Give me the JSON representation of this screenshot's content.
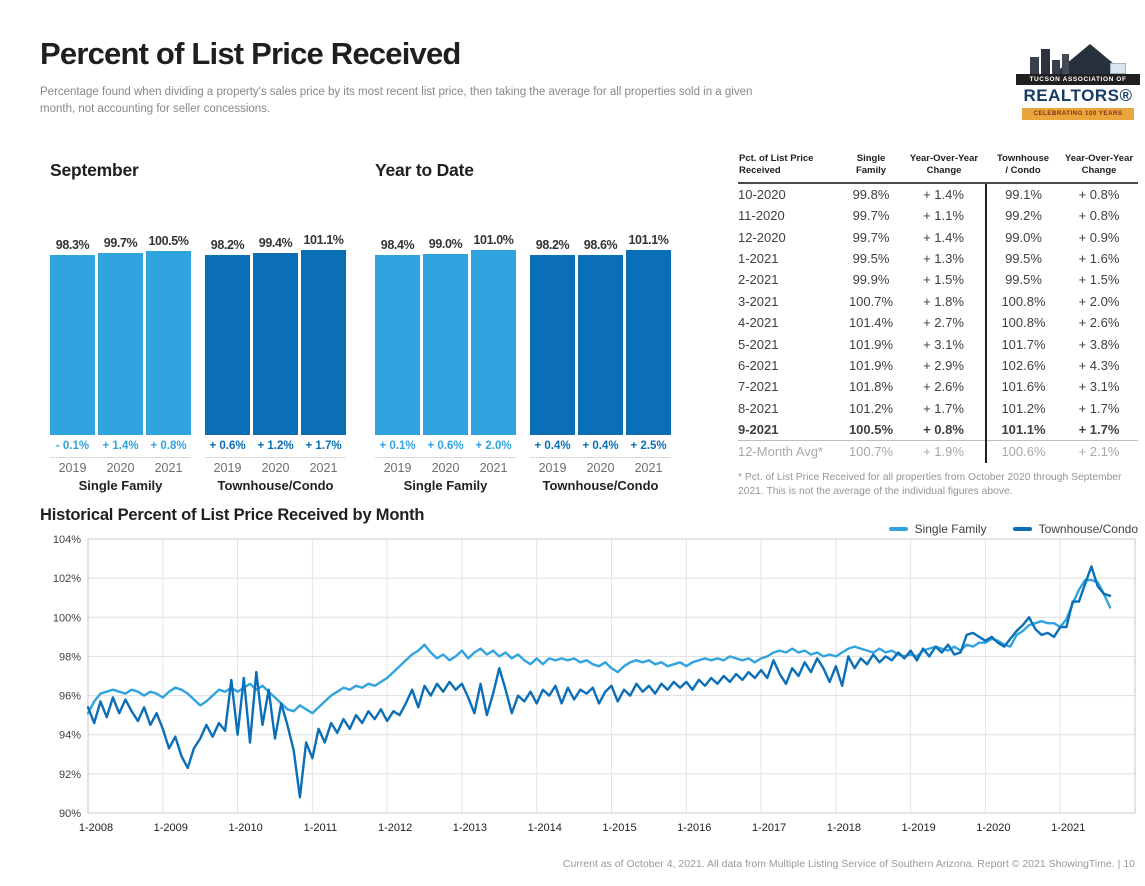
{
  "header": {
    "title": "Percent of List Price Received",
    "subtitle": "Percentage found when dividing a property's sales price by its most recent list price, then taking the average for all properties sold in a given month, not accounting for seller concessions.",
    "logo": {
      "line1": "TUCSON ASSOCIATION OF",
      "line2": "REALTORS®",
      "line3": "CELEBRATING 100 YEARS"
    }
  },
  "colors": {
    "single_family": "#31a3de",
    "townhouse_condo": "#0a6fb7"
  },
  "chart_data": [
    {
      "id": "september",
      "type": "bar",
      "title": "September",
      "categories": [
        "2019",
        "2020",
        "2021"
      ],
      "series": [
        {
          "name": "Single Family",
          "color": "#31a3de",
          "values": [
            98.3,
            99.7,
            100.5
          ],
          "labels": [
            "98.3%",
            "99.7%",
            "100.5%"
          ],
          "changes": [
            "- 0.1%",
            "+ 1.4%",
            "+ 0.8%"
          ]
        },
        {
          "name": "Townhouse/Condo",
          "color": "#0a6fb7",
          "values": [
            98.2,
            99.4,
            101.1
          ],
          "labels": [
            "98.2%",
            "99.4%",
            "101.1%"
          ],
          "changes": [
            "+ 0.6%",
            "+ 1.2%",
            "+ 1.7%"
          ]
        }
      ]
    },
    {
      "id": "ytd",
      "type": "bar",
      "title": "Year to Date",
      "categories": [
        "2019",
        "2020",
        "2021"
      ],
      "series": [
        {
          "name": "Single Family",
          "color": "#31a3de",
          "values": [
            98.4,
            99.0,
            101.0
          ],
          "labels": [
            "98.4%",
            "99.0%",
            "101.0%"
          ],
          "changes": [
            "+ 0.1%",
            "+ 0.6%",
            "+ 2.0%"
          ]
        },
        {
          "name": "Townhouse/Condo",
          "color": "#0a6fb7",
          "values": [
            98.2,
            98.6,
            101.1
          ],
          "labels": [
            "98.2%",
            "98.6%",
            "101.1%"
          ],
          "changes": [
            "+ 0.4%",
            "+ 0.4%",
            "+ 2.5%"
          ]
        }
      ]
    },
    {
      "id": "historical",
      "type": "line",
      "title": "Historical Percent of List Price Received by Month",
      "x_start": "1-2008",
      "x_end": "9-2021",
      "frequency": "monthly",
      "xticks": [
        "1-2008",
        "1-2009",
        "1-2010",
        "1-2011",
        "1-2012",
        "1-2013",
        "1-2014",
        "1-2015",
        "1-2016",
        "1-2017",
        "1-2018",
        "1-2019",
        "1-2020",
        "1-2021"
      ],
      "yticks": [
        "104%",
        "102%",
        "100%",
        "98%",
        "96%",
        "94%",
        "92%",
        "90%"
      ],
      "ylim": [
        90,
        104
      ],
      "grid": true,
      "legend_position": "top-right",
      "series": [
        {
          "name": "Single Family",
          "color": "#31a3de",
          "values": [
            95.1,
            95.7,
            96.1,
            96.2,
            96.3,
            96.2,
            96.1,
            96.3,
            96.2,
            96.0,
            96.2,
            96.1,
            95.9,
            96.2,
            96.4,
            96.3,
            96.1,
            95.8,
            95.5,
            95.7,
            96.0,
            96.3,
            96.2,
            96.4,
            96.2,
            96.4,
            96.6,
            96.3,
            96.5,
            96.2,
            95.9,
            95.6,
            95.3,
            95.2,
            95.5,
            95.3,
            95.1,
            95.4,
            95.7,
            96.0,
            96.2,
            96.4,
            96.3,
            96.5,
            96.4,
            96.6,
            96.5,
            96.7,
            96.9,
            97.2,
            97.5,
            97.8,
            98.1,
            98.3,
            98.6,
            98.2,
            97.9,
            98.1,
            97.8,
            98.0,
            98.3,
            97.9,
            98.2,
            98.4,
            98.1,
            98.3,
            98.0,
            98.2,
            97.9,
            98.1,
            97.8,
            97.6,
            97.9,
            97.6,
            97.9,
            97.8,
            97.9,
            97.8,
            97.9,
            97.7,
            97.8,
            97.6,
            97.5,
            97.7,
            97.4,
            97.2,
            97.5,
            97.7,
            97.8,
            97.7,
            97.8,
            97.6,
            97.7,
            97.5,
            97.6,
            97.7,
            97.5,
            97.7,
            97.8,
            97.9,
            97.8,
            97.9,
            97.8,
            98.0,
            97.9,
            97.8,
            97.9,
            97.7,
            97.9,
            98.0,
            98.2,
            98.3,
            98.2,
            98.4,
            98.2,
            98.3,
            98.1,
            98.2,
            98.0,
            98.1,
            98.0,
            98.2,
            98.4,
            98.5,
            98.4,
            98.3,
            98.2,
            98.4,
            98.2,
            98.3,
            98.1,
            98.0,
            98.1,
            98.0,
            98.3,
            98.4,
            98.5,
            98.4,
            98.3,
            98.5,
            98.3,
            98.6,
            98.5,
            98.7,
            98.7,
            98.9,
            98.8,
            98.6,
            98.5,
            99.1,
            99.3,
            99.6,
            99.7,
            99.8,
            99.7,
            99.7,
            99.5,
            99.9,
            100.7,
            101.4,
            101.9,
            101.9,
            101.8,
            101.2,
            100.5
          ]
        },
        {
          "name": "Townhouse/Condo",
          "color": "#0a6fb7",
          "values": [
            95.4,
            94.6,
            95.7,
            94.9,
            95.9,
            95.1,
            95.8,
            95.2,
            94.7,
            95.4,
            94.5,
            95.1,
            94.3,
            93.3,
            93.9,
            92.9,
            92.3,
            93.3,
            93.8,
            94.5,
            93.9,
            94.6,
            94.2,
            96.8,
            94.0,
            96.9,
            93.6,
            97.2,
            94.5,
            96.3,
            93.8,
            95.6,
            94.5,
            93.2,
            90.8,
            93.6,
            92.8,
            94.3,
            93.6,
            94.6,
            94.1,
            94.8,
            94.3,
            95.0,
            94.6,
            95.2,
            94.8,
            95.3,
            94.7,
            95.2,
            95.0,
            95.6,
            96.3,
            95.4,
            96.5,
            96.0,
            96.6,
            96.2,
            96.7,
            96.3,
            96.6,
            95.9,
            95.1,
            96.6,
            95.0,
            96.1,
            97.4,
            96.3,
            95.1,
            96.0,
            95.7,
            96.2,
            95.6,
            96.3,
            96.0,
            96.5,
            95.6,
            96.4,
            95.8,
            96.3,
            96.1,
            96.4,
            95.6,
            96.2,
            96.5,
            95.7,
            96.3,
            96.0,
            96.6,
            96.2,
            96.5,
            96.1,
            96.6,
            96.3,
            96.7,
            96.4,
            96.7,
            96.3,
            96.8,
            96.5,
            96.9,
            96.6,
            97.0,
            96.7,
            97.1,
            96.8,
            97.2,
            96.9,
            97.3,
            96.9,
            97.8,
            97.1,
            96.6,
            97.4,
            97.0,
            97.7,
            97.2,
            97.9,
            97.4,
            96.7,
            97.5,
            96.5,
            98.0,
            97.4,
            97.9,
            97.6,
            98.1,
            97.7,
            98.0,
            97.8,
            98.2,
            97.9,
            98.3,
            97.8,
            98.4,
            98.0,
            98.5,
            98.2,
            98.6,
            98.1,
            98.2,
            99.1,
            99.2,
            99.0,
            98.8,
            99.0,
            98.7,
            98.5,
            98.9,
            99.3,
            99.6,
            100.0,
            99.4,
            99.1,
            99.2,
            99.0,
            99.5,
            99.5,
            100.8,
            100.8,
            101.7,
            102.6,
            101.6,
            101.2,
            101.1
          ]
        }
      ]
    }
  ],
  "table": {
    "headers": [
      "Pct. of List Price\nReceived",
      "Single\nFamily",
      "Year-Over-Year\nChange",
      "Townhouse\n/ Condo",
      "Year-Over-Year\nChange"
    ],
    "rows": [
      {
        "cells": [
          "10-2020",
          "99.8%",
          "+ 1.4%",
          "99.1%",
          "+ 0.8%"
        ],
        "style": "normal"
      },
      {
        "cells": [
          "11-2020",
          "99.7%",
          "+ 1.1%",
          "99.2%",
          "+ 0.8%"
        ],
        "style": "normal"
      },
      {
        "cells": [
          "12-2020",
          "99.7%",
          "+ 1.4%",
          "99.0%",
          "+ 0.9%"
        ],
        "style": "normal"
      },
      {
        "cells": [
          "1-2021",
          "99.5%",
          "+ 1.3%",
          "99.5%",
          "+ 1.6%"
        ],
        "style": "normal"
      },
      {
        "cells": [
          "2-2021",
          "99.9%",
          "+ 1.5%",
          "99.5%",
          "+ 1.5%"
        ],
        "style": "normal"
      },
      {
        "cells": [
          "3-2021",
          "100.7%",
          "+ 1.8%",
          "100.8%",
          "+ 2.0%"
        ],
        "style": "normal"
      },
      {
        "cells": [
          "4-2021",
          "101.4%",
          "+ 2.7%",
          "100.8%",
          "+ 2.6%"
        ],
        "style": "normal"
      },
      {
        "cells": [
          "5-2021",
          "101.9%",
          "+ 3.1%",
          "101.7%",
          "+ 3.8%"
        ],
        "style": "normal"
      },
      {
        "cells": [
          "6-2021",
          "101.9%",
          "+ 2.9%",
          "102.6%",
          "+ 4.3%"
        ],
        "style": "normal"
      },
      {
        "cells": [
          "7-2021",
          "101.8%",
          "+ 2.6%",
          "101.6%",
          "+ 3.1%"
        ],
        "style": "normal"
      },
      {
        "cells": [
          "8-2021",
          "101.2%",
          "+ 1.7%",
          "101.2%",
          "+ 1.7%"
        ],
        "style": "normal"
      },
      {
        "cells": [
          "9-2021",
          "100.5%",
          "+ 0.8%",
          "101.1%",
          "+ 1.7%"
        ],
        "style": "bold"
      },
      {
        "cells": [
          "12-Month Avg*",
          "100.7%",
          "+ 1.9%",
          "100.6%",
          "+ 2.1%"
        ],
        "style": "avg"
      }
    ],
    "footnote": "* Pct. of List Price Received for all properties from October 2020 through September 2021. This is not the average of the individual figures above."
  },
  "footer": {
    "text": "Current as of October 4, 2021. All data from Multiple Listing Service of Southern Arizona. Report © 2021 ShowingTime.  |  10"
  }
}
